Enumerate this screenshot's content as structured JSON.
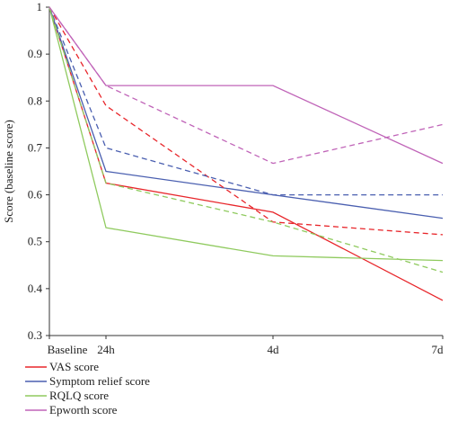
{
  "chart_data": {
    "type": "line",
    "xlabel": "",
    "ylabel": "Score (baseline score)",
    "x_categories": [
      "Baseline",
      "24h",
      "4d",
      "7d"
    ],
    "ylim": [
      0.3,
      1.0
    ],
    "yticks": [
      "0.3",
      "0.4",
      "0.5",
      "0.6",
      "0.7",
      "0.8",
      "0.9",
      "1"
    ],
    "grid": false,
    "legend_placement": "bottom-left",
    "series": [
      {
        "name": "VAS score",
        "color": "#e8262b",
        "style": "solid",
        "values": [
          1.0,
          0.625,
          0.563,
          0.375
        ]
      },
      {
        "name": "Symptom relief score",
        "color": "#4a5fb0",
        "style": "solid",
        "values": [
          1.0,
          0.65,
          0.6,
          0.55
        ]
      },
      {
        "name": "RQLQ score",
        "color": "#8fca5e",
        "style": "solid",
        "values": [
          1.0,
          0.53,
          0.47,
          0.46
        ]
      },
      {
        "name": "Epworth score",
        "color": "#c064b8",
        "style": "solid",
        "values": [
          1.0,
          0.833,
          0.833,
          0.667
        ]
      },
      {
        "color": "#e8262b",
        "style": "dashed",
        "values": [
          1.0,
          0.79,
          0.542,
          0.515
        ]
      },
      {
        "color": "#4a5fb0",
        "style": "dashed",
        "values": [
          1.0,
          0.7,
          0.6,
          0.6
        ]
      },
      {
        "color": "#8fca5e",
        "style": "dashed",
        "values": [
          1.0,
          0.625,
          0.542,
          0.435
        ]
      },
      {
        "color": "#c064b8",
        "style": "dashed",
        "values": [
          1.0,
          0.833,
          0.667,
          0.75
        ]
      }
    ]
  }
}
